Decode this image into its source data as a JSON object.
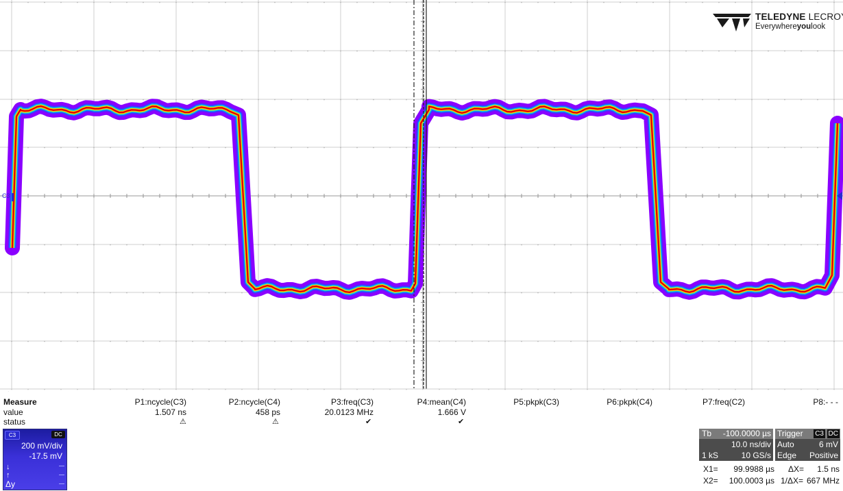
{
  "brand": {
    "name_bold": "TELEDYNE",
    "name_thin": "LECROY",
    "tagline_pre": "Everywhere",
    "tagline_bold": "you",
    "tagline_post": "look"
  },
  "trace": {
    "channel_label": "C3"
  },
  "measure": {
    "title": "Measure",
    "row_value": "value",
    "row_status": "status",
    "params": [
      {
        "name": "P1:ncycle(C3)",
        "value": "1.507 ns",
        "status": "warning"
      },
      {
        "name": "P2:ncycle(C4)",
        "value": "458 ps",
        "status": "warning"
      },
      {
        "name": "P3:freq(C3)",
        "value": "20.0123 MHz",
        "status": "ok"
      },
      {
        "name": "P4:mean(C4)",
        "value": "1.666 V",
        "status": "ok"
      },
      {
        "name": "P5:pkpk(C3)",
        "value": "",
        "status": ""
      },
      {
        "name": "P6:pkpk(C4)",
        "value": "",
        "status": ""
      },
      {
        "name": "P7:freq(C2)",
        "value": "",
        "status": ""
      },
      {
        "name": "P8:- - -",
        "value": "",
        "status": ""
      }
    ]
  },
  "channel": {
    "id": "C3",
    "coupling": "DC",
    "scale": "200 mV/div",
    "offset": "-17.5 mV",
    "delta_label": "Δy"
  },
  "timebase": {
    "label": "Tb",
    "delay": "-100.0000 µs",
    "scale": "10.0 ns/div",
    "samples": "1 kS",
    "rate": "10 GS/s"
  },
  "trigger": {
    "label": "Trigger",
    "source": "C3",
    "coupling": "DC",
    "mode": "Auto",
    "level": "6 mV",
    "type": "Edge",
    "slope": "Positive"
  },
  "cursors": {
    "x1_label": "X1=",
    "x1": "99.9988 µs",
    "x2_label": "X2=",
    "x2": "100.0003 µs",
    "dx_label": "ΔX=",
    "dx": "1.5 ns",
    "inv_dx_label": "1/ΔX=",
    "inv_dx": "667 MHz"
  },
  "colors": {
    "trace_core": "#e00000",
    "trace_mid": "#ffd000",
    "trace_edge": "#8a00ff",
    "grid": "#c8c8c8",
    "panel_blue": "#3a30d8"
  }
}
